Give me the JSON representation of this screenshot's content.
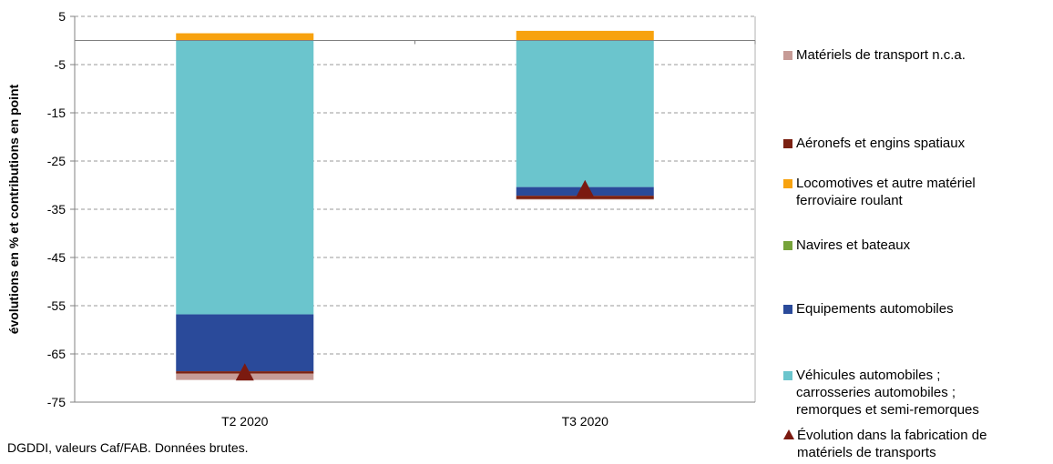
{
  "chart_data": {
    "type": "bar",
    "stacked": true,
    "categories": [
      "T2 2020",
      "T3 2020"
    ],
    "ylabel": "évolutions en % et contributions en point",
    "ylim": [
      -75,
      5
    ],
    "yticks": [
      5,
      -5,
      -15,
      -25,
      -35,
      -45,
      -55,
      -65,
      -75
    ],
    "grid": true,
    "legend_position": "right",
    "series": [
      {
        "name": "Matériels de transport n.c.a.",
        "color": "#c69b96",
        "values": [
          -1.3,
          -0.1
        ]
      },
      {
        "name": "Aéronefs et engins spatiaux",
        "color": "#7b2112",
        "values": [
          -0.5,
          -0.7
        ]
      },
      {
        "name": "Locomotives et autre matériel\nferroviaire roulant",
        "color": "#f7a20f",
        "values": [
          1.5,
          2.0
        ]
      },
      {
        "name": "Navires et bateaux",
        "color": "#76a33a",
        "values": [
          0,
          0
        ]
      },
      {
        "name": "Equipements automobiles",
        "color": "#2a4a9a",
        "values": [
          -11.8,
          -1.8
        ]
      },
      {
        "name": "Véhicules automobiles ;\ncarrosseries automobiles ;\nremorques et semi-remorques",
        "color": "#6bc5cd",
        "values": [
          -56.8,
          -30.4
        ]
      }
    ],
    "line_series": {
      "name": "Évolution dans la fabrication de\nmatériels de transports",
      "color": "#7b1a10",
      "marker": "triangle",
      "values": [
        -69.0,
        -31.0
      ]
    }
  },
  "source": "DGDDI, valeurs Caf/FAB. Données brutes."
}
